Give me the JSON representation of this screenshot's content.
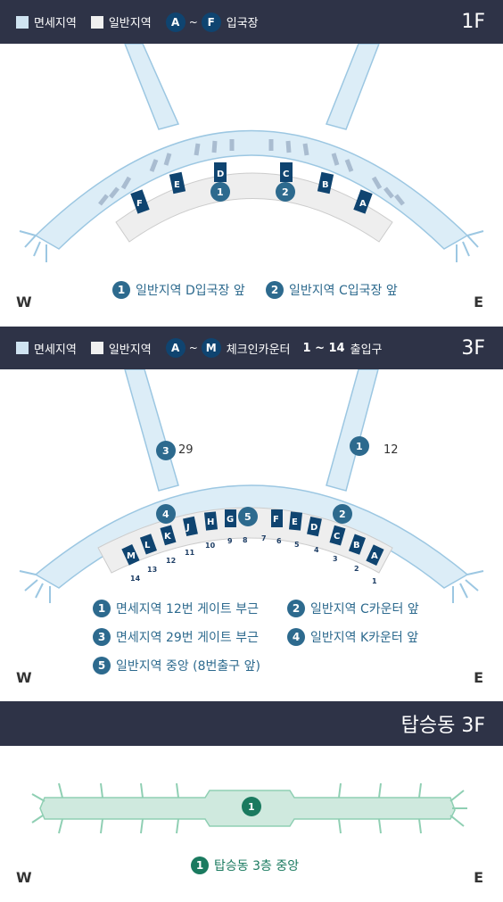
{
  "floor1": {
    "legend": {
      "duty": "면세지역",
      "general": "일반지역",
      "from": "A",
      "tilde": "~",
      "to": "F",
      "suffix": "입국장"
    },
    "title": "1F",
    "entries": [
      "A",
      "B",
      "C",
      "D",
      "E",
      "F"
    ],
    "markers": [
      "1",
      "2"
    ],
    "notes": [
      {
        "num": "1",
        "text": "일반지역 D입국장 앞"
      },
      {
        "num": "2",
        "text": "일반지역 C입국장 앞"
      }
    ],
    "west": "W",
    "east": "E"
  },
  "floor3": {
    "legend": {
      "duty": "면세지역",
      "general": "일반지역",
      "from": "A",
      "tilde": "~",
      "to": "M",
      "suffix": "체크인카운터",
      "range": "1 ~ 14",
      "range_suffix": "출입구"
    },
    "title": "3F",
    "counters": [
      "A",
      "B",
      "C",
      "D",
      "E",
      "F",
      "G",
      "H",
      "J",
      "K",
      "L",
      "M"
    ],
    "doors": [
      "1",
      "2",
      "3",
      "4",
      "5",
      "6",
      "7",
      "8",
      "9",
      "10",
      "11",
      "12",
      "13",
      "14"
    ],
    "markers": [
      "1",
      "2",
      "3",
      "4",
      "5"
    ],
    "gate_labels": {
      "left": "29",
      "right": "12"
    },
    "notes": [
      {
        "num": "1",
        "text": "면세지역 12번 게이트 부근"
      },
      {
        "num": "2",
        "text": "일반지역 C카운터 앞"
      },
      {
        "num": "3",
        "text": "면세지역 29번 게이트 부근"
      },
      {
        "num": "4",
        "text": "일반지역 K카운터 앞"
      },
      {
        "num": "5",
        "text": "일반지역 중앙 (8번출구 앞)"
      }
    ],
    "west": "W",
    "east": "E"
  },
  "concourse": {
    "title": "탑승동 3F",
    "marker": "1",
    "notes": [
      {
        "num": "1",
        "text": "탑승동 3층 중앙"
      }
    ],
    "west": "W",
    "east": "E"
  }
}
